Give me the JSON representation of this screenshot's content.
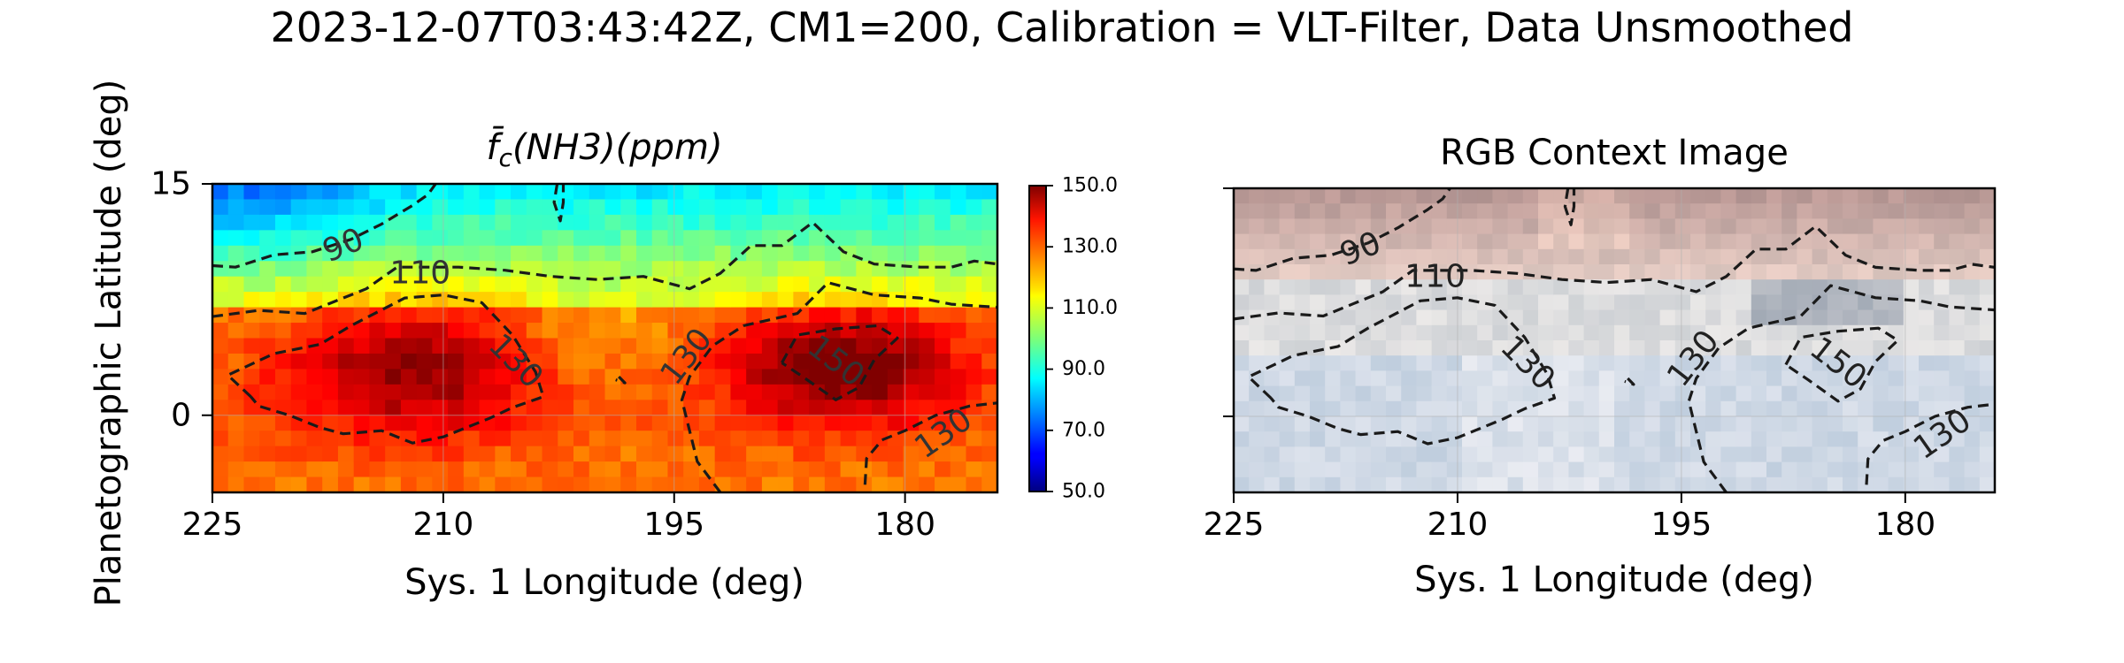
{
  "figure": {
    "suptitle": "2023-12-07T03:43:42Z, CM1=200, Calibration = VLT-Filter, Data Unsmoothed",
    "ylabel": "Planetographic Latitude (deg)"
  },
  "chart_data": [
    {
      "type": "heatmap",
      "title": "f̄c(NH3)(ppm)",
      "title_parts": {
        "base": "f̄",
        "sub": "c",
        "rest": "(NH3)(ppm)"
      },
      "xlabel": "Sys. 1 Longitude (deg)",
      "xlim": [
        225,
        174
      ],
      "ylim": [
        -5,
        15
      ],
      "xticks": [
        225,
        210,
        195,
        180
      ],
      "xtick_labels": [
        "225",
        "210",
        "195",
        "180"
      ],
      "yticks": [
        15,
        0
      ],
      "ytick_labels": [
        "15",
        "0"
      ],
      "colorbar": {
        "cmap": "jet",
        "range": [
          50,
          150
        ],
        "ticks": [
          150,
          130,
          110,
          90,
          70,
          50
        ],
        "tick_labels": [
          "150.0",
          "130.0",
          "110.0",
          "90.0",
          "70.0",
          "50.0"
        ]
      },
      "field_shape": "90 ppm at top-left rising to ~150 ppm in red blobs near lon 212,lat 3 and lon 184,lat 3; ~128 ppm bottom",
      "contour_labels": [
        "90",
        "110",
        "130",
        "130",
        "150",
        "130"
      ],
      "contours": [
        {
          "level": 90,
          "label": "90",
          "points": [
            [
              225,
              9.7
            ],
            [
              223.5,
              9.6
            ],
            [
              221,
              10.4
            ],
            [
              218.5,
              10.6
            ],
            [
              216,
              11.4
            ],
            [
              214,
              12.4
            ],
            [
              212,
              13.6
            ],
            [
              211,
              14.3
            ],
            [
              210.5,
              15
            ]
          ]
        },
        {
          "level": 90,
          "label": "",
          "points": [
            [
              202.6,
              15
            ],
            [
              202.8,
              13.8
            ],
            [
              202.4,
              12.6
            ],
            [
              202.2,
              13.8
            ],
            [
              202.2,
              15
            ]
          ]
        },
        {
          "level": 110,
          "label": "110",
          "points": [
            [
              225,
              6.4
            ],
            [
              222,
              6.8
            ],
            [
              219,
              6.6
            ],
            [
              217,
              7.4
            ],
            [
              215,
              8.2
            ],
            [
              213,
              9.6
            ],
            [
              209,
              9.6
            ],
            [
              206,
              9.4
            ],
            [
              203,
              9.0
            ],
            [
              200,
              8.8
            ],
            [
              197,
              9.0
            ],
            [
              194,
              8.2
            ],
            [
              192,
              9.2
            ],
            [
              190,
              11.0
            ],
            [
              188,
              11.0
            ],
            [
              186,
              12.5
            ],
            [
              184,
              10.6
            ],
            [
              182,
              9.8
            ],
            [
              179,
              9.6
            ],
            [
              177,
              9.6
            ],
            [
              175.5,
              10.0
            ],
            [
              174,
              9.8
            ]
          ]
        },
        {
          "level": 130,
          "label": "130",
          "points": [
            [
              222.5,
              1.2
            ],
            [
              224,
              2.6
            ],
            [
              221,
              4.0
            ],
            [
              218,
              4.6
            ],
            [
              216,
              5.8
            ],
            [
              212.5,
              7.6
            ],
            [
              210,
              7.8
            ],
            [
              207.5,
              7.3
            ],
            [
              205.5,
              5.2
            ],
            [
              204,
              2.8
            ],
            [
              203.5,
              1.2
            ],
            [
              205.5,
              0.5
            ],
            [
              207,
              -0.2
            ],
            [
              208,
              -0.6
            ],
            [
              210,
              -1.4
            ],
            [
              212,
              -1.8
            ],
            [
              214,
              -1.0
            ],
            [
              216.5,
              -1.2
            ],
            [
              218,
              -0.8
            ],
            [
              220,
              0.0
            ],
            [
              222,
              0.6
            ],
            [
              222.5,
              1.2
            ]
          ]
        },
        {
          "level": 130,
          "label": "",
          "points": [
            [
              198.6,
              2.5
            ],
            [
              198.2,
              2.1
            ],
            [
              198.8,
              2.3
            ]
          ]
        },
        {
          "level": 130,
          "label": "130",
          "points": [
            [
              192,
              -5
            ],
            [
              193.5,
              -3.0
            ],
            [
              194,
              -1.0
            ],
            [
              194.5,
              1.0
            ],
            [
              194,
              2.5
            ],
            [
              192.5,
              4.5
            ],
            [
              190.5,
              5.8
            ],
            [
              187,
              6.6
            ],
            [
              185,
              8.6
            ],
            [
              182,
              7.8
            ],
            [
              179,
              7.6
            ],
            [
              177,
              7.2
            ],
            [
              174,
              7.0
            ]
          ]
        },
        {
          "level": 150,
          "label": "150",
          "points": [
            [
              188,
              3.4
            ],
            [
              187,
              5.2
            ],
            [
              184.5,
              5.6
            ],
            [
              181.8,
              5.8
            ],
            [
              180.5,
              5.0
            ],
            [
              182,
              3.6
            ],
            [
              183,
              1.8
            ],
            [
              184.5,
              1.0
            ],
            [
              186.5,
              2.4
            ],
            [
              188,
              3.4
            ]
          ]
        },
        {
          "level": 130,
          "label": "130",
          "points": [
            [
              182.6,
              -4.5
            ],
            [
              182.5,
              -2.8
            ],
            [
              181.5,
              -1.6
            ],
            [
              180,
              -1.0
            ],
            [
              178,
              0.0
            ],
            [
              175.8,
              0.6
            ],
            [
              174,
              0.8
            ]
          ]
        }
      ]
    },
    {
      "type": "heatmap",
      "title": "RGB Context Image",
      "xlabel": "Sys. 1 Longitude (deg)",
      "xlim": [
        225,
        174
      ],
      "ylim": [
        -5,
        15
      ],
      "xticks": [
        225,
        210,
        195,
        180
      ],
      "xtick_labels": [
        "225",
        "210",
        "195",
        "180"
      ],
      "yticks": [
        15,
        0
      ],
      "ytick_labels": [
        "",
        ""
      ],
      "image": "RGB context image: brownish belt in upper latitudes, pale blue-white zone below",
      "contour_labels": [
        "90",
        "110",
        "130",
        "130",
        "150",
        "130"
      ],
      "contours_from_panel": 0
    }
  ],
  "colors": {
    "contour": "#1a1a1a",
    "grid": "#b0b0b0",
    "axes": "#000000"
  }
}
